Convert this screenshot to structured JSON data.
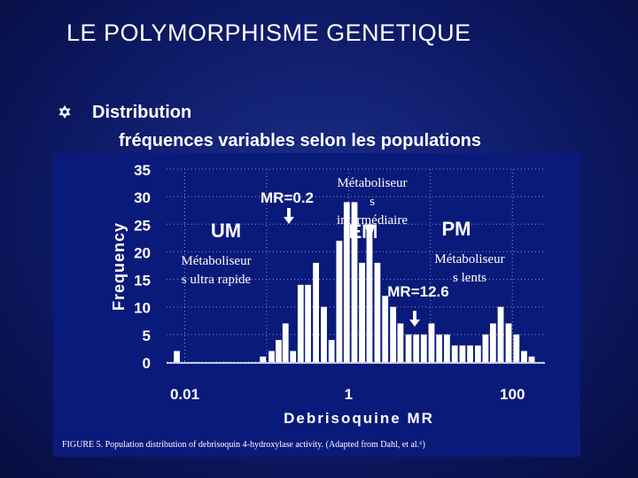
{
  "slide": {
    "title": "LE POLYMORPHISME GENETIQUE",
    "bullet_icon": "star-of-david-icon",
    "bullet": "Distribution",
    "subline": "fréquences variables selon les populations"
  },
  "chart_data": {
    "type": "bar",
    "xlabel": "Debrisoquine MR",
    "ylabel": "Frequency",
    "xscale": "log",
    "xlim": [
      0.006,
      250
    ],
    "ylim": [
      0,
      35
    ],
    "yticks": [
      0,
      5,
      10,
      15,
      20,
      25,
      30,
      35
    ],
    "xticks": [
      0.01,
      1,
      100
    ],
    "xtick_labels": [
      "0.01",
      "1",
      "100"
    ],
    "grid": "dotted",
    "caption": "FIGURE 5.    Population distribution of debrisoquin 4-hydroxylase activity. (Adapted from Dahl, et al.⁶)",
    "series": [
      {
        "x": [
          0.008,
          0.09,
          0.115,
          0.14,
          0.17,
          0.21,
          0.26,
          0.32,
          0.4,
          0.5,
          0.62,
          0.77,
          0.95,
          1.18,
          1.46,
          1.8,
          2.25,
          2.8,
          3.5,
          4.3,
          5.4,
          6.7,
          8.3,
          10.3,
          12.8,
          15.9,
          19.8,
          24.6,
          30.5,
          38,
          47,
          58,
          72,
          90,
          112,
          139,
          172
        ],
        "values": [
          2,
          1,
          2,
          4,
          7,
          2,
          14,
          14,
          18,
          10,
          4,
          22,
          29,
          29,
          18,
          25,
          18,
          12,
          10,
          7,
          5,
          5,
          5,
          7,
          5,
          5,
          3,
          3,
          3,
          3,
          5,
          7,
          10,
          7,
          5,
          2,
          1
        ]
      }
    ],
    "annotations": [
      {
        "text": "UM",
        "kind": "group"
      },
      {
        "text": "EM",
        "kind": "group"
      },
      {
        "text": "PM",
        "kind": "group"
      },
      {
        "text": "MR=0.2",
        "kind": "marker"
      },
      {
        "text": "MR=12.6",
        "kind": "marker"
      },
      {
        "text": "Métaboliseur",
        "kind": "note"
      },
      {
        "text": "s ultra rapide",
        "kind": "note"
      },
      {
        "text": "Métaboliseur",
        "kind": "note"
      },
      {
        "text": "s",
        "kind": "note"
      },
      {
        "text": "intermédiaire",
        "kind": "note"
      },
      {
        "text": "Métaboliseur",
        "kind": "note"
      },
      {
        "text": "s lents",
        "kind": "note"
      }
    ],
    "colors": {
      "background": "#0a1a7a",
      "bar_fill": "#ffffff",
      "text": "#ffffff",
      "grid": "#8a93c4"
    }
  }
}
